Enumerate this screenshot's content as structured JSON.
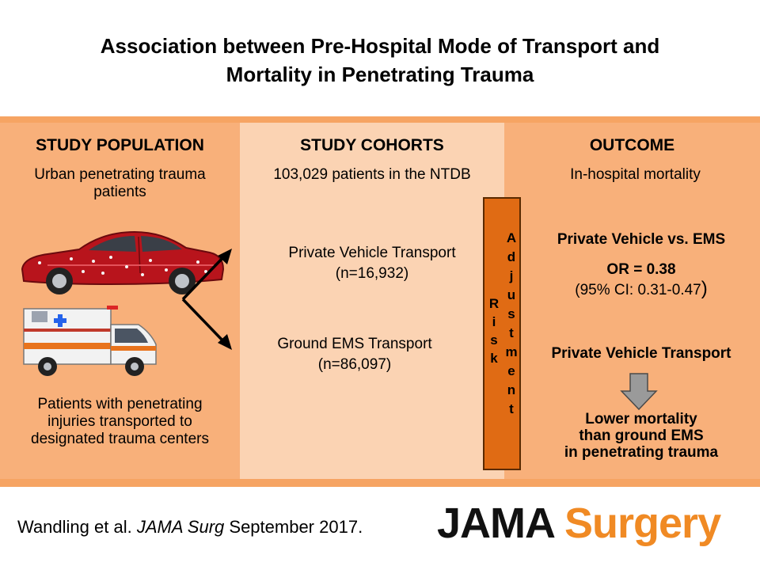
{
  "title": {
    "line1": "Association between Pre-Hospital Mode of Transport and",
    "line2": "Mortality in Penetrating Trauma"
  },
  "population": {
    "heading": "STUDY POPULATION",
    "desc_line1": "Urban penetrating trauma",
    "desc_line2": "patients",
    "bottom_line1": "Patients with penetrating",
    "bottom_line2": "injuries transported to",
    "bottom_line3": "designated trauma centers"
  },
  "cohorts": {
    "heading": "STUDY COHORTS",
    "total": "103,029 patients in the NTDB",
    "private_label": "Private Vehicle Transport",
    "private_n": "(n=16,932)",
    "ems_label": "Ground EMS Transport",
    "ems_n": "(n=86,097)"
  },
  "adjustment": {
    "word1": [
      "R",
      "i",
      "s",
      "k"
    ],
    "word2": [
      "A",
      "d",
      "j",
      "u",
      "s",
      "t",
      "m",
      "e",
      "n",
      "t"
    ]
  },
  "outcome": {
    "heading": "OUTCOME",
    "measure": "In-hospital mortality",
    "comparison": "Private Vehicle vs. EMS",
    "or": "OR = 0.38",
    "ci": "(95% CI: 0.31-0.47",
    "ci_close": ")",
    "finding_subject": "Private Vehicle Transport",
    "finding_line1": "Lower mortality",
    "finding_line2": "than ground EMS",
    "finding_line3": "in penetrating trauma"
  },
  "citation": {
    "authors": "Wandling et al. ",
    "journal": "JAMA Surg",
    "date": " September 2017."
  },
  "logo": {
    "part1": "JAMA",
    "part2": " Surgery"
  },
  "colors": {
    "band": "#f6a463",
    "side_columns": "#f8b07a",
    "center_column": "#fbd3b3",
    "adjustment_bar": "#e06b14",
    "logo_accent": "#f08a24"
  }
}
